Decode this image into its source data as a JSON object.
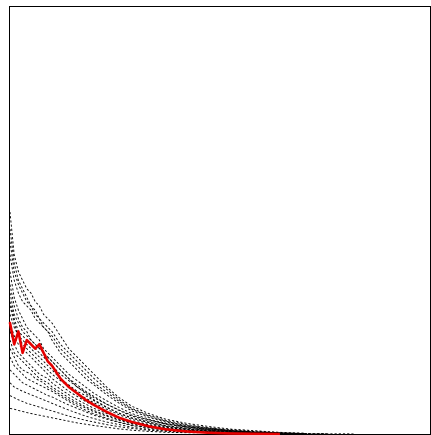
{
  "chart_data": {
    "type": "line",
    "title": "",
    "xlabel": "",
    "ylabel": "",
    "grid": false,
    "legend": false,
    "xlim": [
      0,
      100
    ],
    "ylim": [
      0,
      100
    ],
    "background_series_style": "black dashed",
    "highlight_color": "#e60000",
    "x": [
      0,
      1,
      2,
      3,
      4,
      5,
      6,
      7,
      8,
      9,
      10,
      12,
      14,
      16,
      18,
      20,
      23,
      26,
      29,
      33,
      37,
      42,
      47,
      52,
      58,
      64,
      70,
      76,
      82
    ],
    "series": [
      {
        "style": "dashed",
        "values": [
          52,
          42,
          38,
          36,
          34,
          33,
          31,
          30,
          28,
          27,
          26,
          23,
          20,
          18,
          16,
          14,
          11,
          8.5,
          6.5,
          4.8,
          3.5,
          2.5,
          1.8,
          1.2,
          0.8,
          0.4,
          0.2,
          null,
          null
        ]
      },
      {
        "style": "dashed",
        "values": [
          48,
          40,
          36,
          34,
          32,
          30,
          29,
          27,
          26,
          25,
          24,
          21,
          19,
          17,
          15,
          13,
          10.5,
          8.0,
          6.0,
          4.4,
          3.2,
          2.2,
          1.5,
          1.0,
          0.6,
          0.3,
          null,
          null,
          null
        ]
      },
      {
        "style": "dashed",
        "values": [
          45,
          38,
          35,
          33,
          31,
          30,
          28,
          27,
          25,
          24,
          23,
          20,
          18,
          16,
          14,
          12,
          9.8,
          7.6,
          5.8,
          4.2,
          3.0,
          2.0,
          1.4,
          0.9,
          0.5,
          0.3,
          0.1,
          null,
          null
        ]
      },
      {
        "style": "dashed",
        "values": [
          42,
          36,
          33,
          31,
          30,
          29,
          27,
          26,
          25,
          24,
          22,
          19,
          17,
          15,
          13,
          11.5,
          9.2,
          7.2,
          5.4,
          3.9,
          2.8,
          1.9,
          1.3,
          0.8,
          0.5,
          0.2,
          null,
          null,
          null
        ]
      },
      {
        "style": "dashed",
        "values": [
          38,
          32,
          29,
          27,
          25,
          24,
          23,
          22,
          20,
          19,
          18,
          16,
          14,
          12.5,
          11,
          9.5,
          7.8,
          6.2,
          4.8,
          3.5,
          2.5,
          1.7,
          1.2,
          0.8,
          0.5,
          0.3,
          0.1,
          null,
          null
        ]
      },
      {
        "style": "dashed",
        "values": [
          35,
          30,
          27,
          25,
          24,
          22,
          21,
          20,
          19,
          18,
          17,
          15,
          13,
          11.5,
          10,
          8.8,
          7.0,
          5.5,
          4.2,
          3.1,
          2.3,
          1.6,
          1.0,
          0.7,
          0.4,
          0.2,
          0.1,
          0.05,
          null
        ]
      },
      {
        "style": "dashed",
        "values": [
          33,
          28,
          26,
          24,
          23,
          22,
          21,
          20,
          19,
          18,
          17,
          15,
          13,
          11,
          9.5,
          8.0,
          6.3,
          4.9,
          3.8,
          2.8,
          2.0,
          1.4,
          0.9,
          0.6,
          0.4,
          0.2,
          0.1,
          null,
          null
        ]
      },
      {
        "style": "dashed",
        "values": [
          31,
          27,
          24,
          23,
          22,
          21,
          20,
          19,
          18,
          17,
          16,
          14,
          12.5,
          11,
          9.8,
          8.5,
          7.0,
          5.6,
          4.4,
          3.3,
          2.4,
          1.7,
          1.1,
          0.7,
          0.4,
          0.2,
          0.1,
          0.05,
          0.02
        ]
      },
      {
        "style": "dashed",
        "values": [
          30,
          26,
          23,
          22,
          21,
          20,
          19,
          18,
          17,
          16,
          15,
          13,
          11.5,
          10,
          9.0,
          7.8,
          6.2,
          4.8,
          3.7,
          2.7,
          1.9,
          1.3,
          0.9,
          0.6,
          0.3,
          0.2,
          0.1,
          null,
          null
        ]
      },
      {
        "style": "dashed",
        "values": [
          28,
          25,
          23,
          21,
          20,
          19,
          18,
          17,
          16,
          15,
          14,
          12.5,
          11,
          9.5,
          8.4,
          7.3,
          5.8,
          4.5,
          3.4,
          2.5,
          1.8,
          1.2,
          0.8,
          0.5,
          0.3,
          0.2,
          0.1,
          0.05,
          null
        ]
      },
      {
        "style": "dashed",
        "values": [
          26,
          23,
          21,
          20,
          19,
          18,
          17,
          16,
          15,
          14,
          13,
          11.5,
          10,
          8.8,
          7.6,
          6.6,
          5.2,
          4.0,
          3.0,
          2.2,
          1.6,
          1.1,
          0.7,
          0.5,
          0.3,
          0.1,
          null,
          null,
          null
        ]
      },
      {
        "style": "dashed",
        "values": [
          24,
          21,
          19,
          18,
          17,
          16,
          15,
          14,
          13.5,
          13,
          12,
          10.5,
          9.2,
          8.0,
          7.0,
          6.0,
          4.8,
          3.7,
          2.8,
          2.0,
          1.5,
          1.0,
          0.7,
          0.4,
          0.3,
          0.1,
          0.05,
          null,
          null
        ]
      },
      {
        "style": "dashed",
        "values": [
          22,
          19,
          18,
          17,
          16,
          15,
          14,
          13,
          12.5,
          12,
          11,
          9.8,
          8.5,
          7.4,
          6.4,
          5.5,
          4.4,
          3.4,
          2.6,
          1.9,
          1.3,
          0.9,
          0.6,
          0.4,
          0.2,
          0.1,
          null,
          null,
          null
        ]
      },
      {
        "style": "dashed",
        "values": [
          20,
          18,
          16,
          15,
          14.5,
          14,
          13,
          12.5,
          12,
          11,
          10.5,
          9.2,
          8.0,
          7.0,
          6.1,
          5.2,
          4.2,
          3.2,
          2.4,
          1.8,
          1.3,
          0.9,
          0.6,
          0.4,
          0.2,
          0.1,
          0.05,
          null,
          null
        ]
      },
      {
        "style": "dashed",
        "values": [
          18,
          16,
          15,
          14,
          13,
          12.5,
          12,
          11.5,
          11,
          10.5,
          10,
          8.8,
          7.6,
          6.5,
          5.6,
          4.7,
          3.7,
          2.8,
          2.1,
          1.5,
          1.1,
          0.7,
          0.5,
          0.3,
          0.2,
          0.1,
          null,
          null,
          null
        ]
      },
      {
        "style": "dashed",
        "values": [
          15,
          14,
          13,
          12,
          11.5,
          11,
          10.5,
          10,
          9.5,
          9,
          8.7,
          7.7,
          6.8,
          6.0,
          5.2,
          4.4,
          3.5,
          2.7,
          2.0,
          1.4,
          1.0,
          0.7,
          0.4,
          0.3,
          0.1,
          0.05,
          null,
          null,
          null
        ]
      },
      {
        "style": "dashed",
        "values": [
          12,
          11,
          10.5,
          10,
          9.6,
          9.2,
          8.8,
          8.4,
          8.0,
          7.6,
          7.2,
          6.4,
          5.6,
          4.9,
          4.2,
          3.6,
          2.8,
          2.2,
          1.6,
          1.1,
          0.8,
          0.5,
          0.3,
          0.2,
          0.1,
          null,
          null,
          null,
          null
        ]
      },
      {
        "style": "dashed",
        "values": [
          9,
          8.5,
          8.0,
          7.6,
          7.2,
          6.9,
          6.6,
          6.3,
          6.0,
          5.7,
          5.4,
          4.8,
          4.2,
          3.7,
          3.2,
          2.8,
          2.2,
          1.7,
          1.3,
          0.9,
          0.6,
          0.4,
          0.3,
          0.2,
          0.1,
          null,
          null,
          null,
          null
        ]
      },
      {
        "style": "dashed",
        "values": [
          6,
          5.8,
          5.5,
          5.3,
          5.0,
          4.8,
          4.6,
          4.4,
          4.2,
          4.0,
          3.8,
          3.4,
          3.0,
          2.6,
          2.3,
          2.0,
          1.6,
          1.2,
          0.9,
          0.6,
          0.4,
          0.3,
          0.2,
          0.1,
          null,
          null,
          null,
          null,
          null
        ]
      },
      {
        "style": "solid",
        "color": "#e60000",
        "values": [
          26,
          21,
          24,
          19,
          22,
          21,
          20,
          21,
          19,
          17,
          16,
          13,
          11,
          9.5,
          8.0,
          6.8,
          5.2,
          3.8,
          2.8,
          1.8,
          1.1,
          0.6,
          0.3,
          0.15,
          0.05,
          0.01,
          null,
          null,
          null
        ]
      }
    ]
  }
}
